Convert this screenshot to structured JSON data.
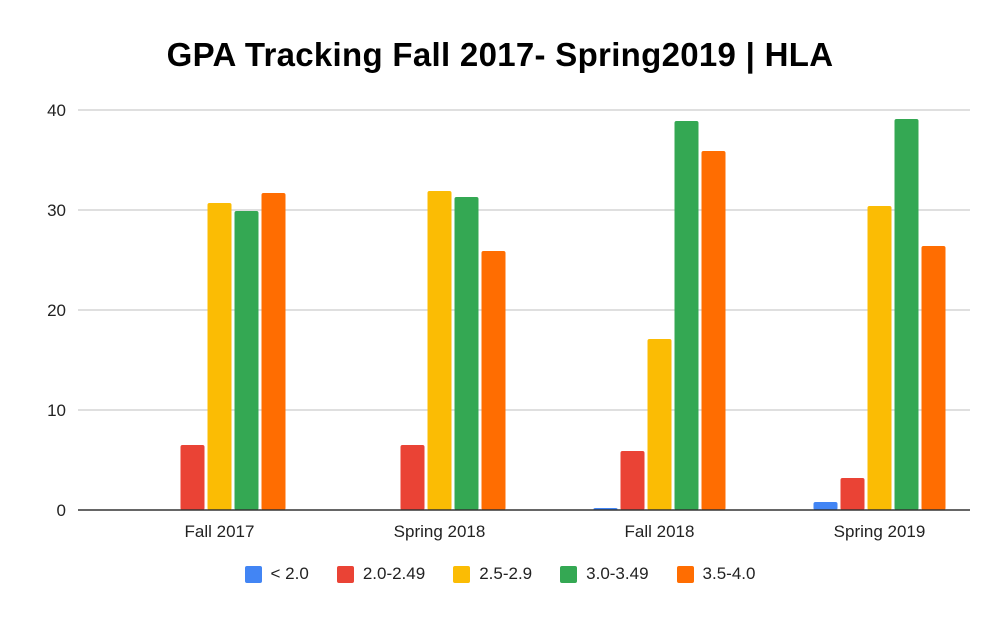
{
  "chart_data": {
    "type": "bar",
    "title": "GPA Tracking Fall 2017- Spring2019 | HLA",
    "xlabel": "",
    "ylabel": "",
    "categories": [
      "Fall 2017",
      "Spring 2018",
      "Fall 2018",
      "Spring 2019"
    ],
    "ylim": [
      0,
      40
    ],
    "yticks": [
      0,
      10,
      20,
      30,
      40
    ],
    "grid": true,
    "legend_position": "bottom",
    "series": [
      {
        "name": "< 2.0",
        "color": "#4285f4",
        "values": [
          0,
          0,
          0.2,
          0.8
        ]
      },
      {
        "name": "2.0-2.49",
        "color": "#ea4335",
        "values": [
          6.5,
          6.5,
          5.9,
          3.2
        ]
      },
      {
        "name": "2.5-2.9",
        "color": "#fbbc04",
        "values": [
          30.7,
          31.9,
          17.1,
          30.4
        ]
      },
      {
        "name": "3.0-3.49",
        "color": "#34a853",
        "values": [
          29.9,
          31.3,
          38.9,
          39.1
        ]
      },
      {
        "name": "3.5-4.0",
        "color": "#ff6d01",
        "values": [
          31.7,
          25.9,
          35.9,
          26.4
        ]
      }
    ]
  }
}
